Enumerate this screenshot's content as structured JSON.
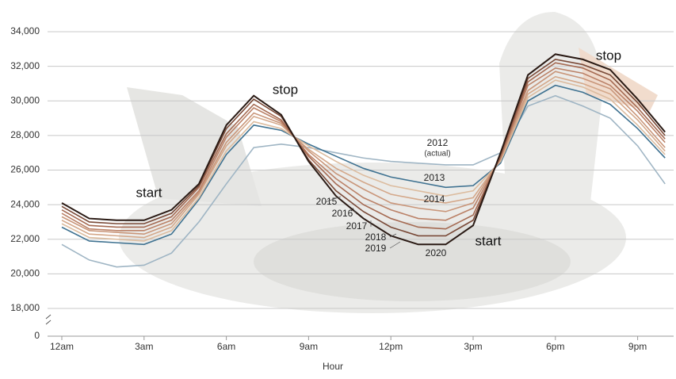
{
  "chart_data": {
    "type": "line",
    "x_label": "Hour",
    "x": [
      0,
      1,
      2,
      3,
      4,
      5,
      6,
      7,
      8,
      9,
      10,
      11,
      12,
      13,
      14,
      15,
      16,
      17,
      18,
      19,
      20,
      21,
      22
    ],
    "xlim": [
      0,
      23
    ],
    "xticks": [
      {
        "value": 0,
        "label": "12am"
      },
      {
        "value": 3,
        "label": "3am"
      },
      {
        "value": 6,
        "label": "6am"
      },
      {
        "value": 9,
        "label": "9am"
      },
      {
        "value": 12,
        "label": "12pm"
      },
      {
        "value": 15,
        "label": "3pm"
      },
      {
        "value": 18,
        "label": "6pm"
      },
      {
        "value": 21,
        "label": "9pm"
      }
    ],
    "ylim": [
      0,
      34000
    ],
    "yticks": [
      0,
      {
        "value": 18000,
        "label": "18,000"
      },
      {
        "value": 20000,
        "label": "20,000"
      },
      {
        "value": 22000,
        "label": "22,000"
      },
      {
        "value": 24000,
        "label": "24,000"
      },
      {
        "value": 26000,
        "label": "26,000"
      },
      {
        "value": 28000,
        "label": "28,000"
      },
      {
        "value": 30000,
        "label": "30,000"
      },
      {
        "value": 32000,
        "label": "32,000"
      },
      {
        "value": 34000,
        "label": "34,000"
      }
    ],
    "axis_break": true,
    "grid": true,
    "series": [
      {
        "name": "2012",
        "annotation": "(actual)",
        "color": "#9fb5c4",
        "values": [
          21700,
          20800,
          20400,
          20500,
          21200,
          23000,
          25200,
          27300,
          27500,
          27300,
          27000,
          26700,
          26500,
          26400,
          26300,
          26300,
          27000,
          29700,
          30300,
          29700,
          29000,
          27400,
          25200
        ]
      },
      {
        "name": "2013",
        "color": "#3f7291",
        "values": [
          22700,
          21900,
          21800,
          21700,
          22300,
          24300,
          26900,
          28600,
          28300,
          27500,
          26800,
          26100,
          25600,
          25300,
          25000,
          25100,
          26400,
          30000,
          30900,
          30500,
          29800,
          28400,
          26700
        ]
      },
      {
        "name": "2014",
        "color": "#dcbc9f",
        "values": [
          22900,
          22100,
          22000,
          21900,
          22500,
          24400,
          27100,
          28800,
          28400,
          27400,
          26500,
          25700,
          25100,
          24800,
          24500,
          24800,
          26500,
          30200,
          31200,
          30800,
          30100,
          28600,
          26900
        ]
      },
      {
        "name": "2015",
        "color": "#d4a88a",
        "values": [
          23100,
          22300,
          22200,
          22100,
          22700,
          24600,
          27400,
          29100,
          28600,
          27200,
          26100,
          25300,
          24600,
          24300,
          24100,
          24400,
          26600,
          30400,
          31400,
          31000,
          30400,
          28900,
          27100
        ]
      },
      {
        "name": "2016",
        "color": "#c9967a",
        "values": [
          23300,
          22500,
          22400,
          22300,
          22900,
          24700,
          27600,
          29300,
          28700,
          27100,
          25800,
          24900,
          24100,
          23800,
          23600,
          24100,
          26700,
          30600,
          31700,
          31300,
          30700,
          29100,
          27300
        ]
      },
      {
        "name": "2017",
        "color": "#bb8268",
        "values": [
          23500,
          22600,
          22500,
          22500,
          23100,
          24800,
          27900,
          29600,
          28800,
          26900,
          25500,
          24400,
          23700,
          23200,
          23100,
          23800,
          26700,
          30900,
          31900,
          31600,
          30900,
          29400,
          27600
        ]
      },
      {
        "name": "2018",
        "color": "#a56a52",
        "values": [
          23700,
          22800,
          22700,
          22700,
          23300,
          25000,
          28100,
          29800,
          28900,
          26800,
          25200,
          24000,
          23200,
          22700,
          22600,
          23400,
          26800,
          31100,
          32200,
          31900,
          31200,
          29600,
          27800
        ]
      },
      {
        "name": "2019",
        "color": "#7a4a38",
        "values": [
          23900,
          23000,
          22900,
          22900,
          23500,
          25100,
          28400,
          30100,
          29100,
          26600,
          24800,
          23600,
          22700,
          22200,
          22200,
          23100,
          26900,
          31300,
          32400,
          32100,
          31500,
          29900,
          28000
        ]
      },
      {
        "name": "2020",
        "color": "#2a1a14",
        "values": [
          24100,
          23200,
          23100,
          23100,
          23700,
          25200,
          28600,
          30300,
          29200,
          26500,
          24500,
          23200,
          22200,
          21700,
          21700,
          22800,
          27000,
          31500,
          32700,
          32400,
          31800,
          30100,
          28200
        ]
      }
    ],
    "annotations": [
      "start",
      "stop",
      "start",
      "stop"
    ]
  }
}
